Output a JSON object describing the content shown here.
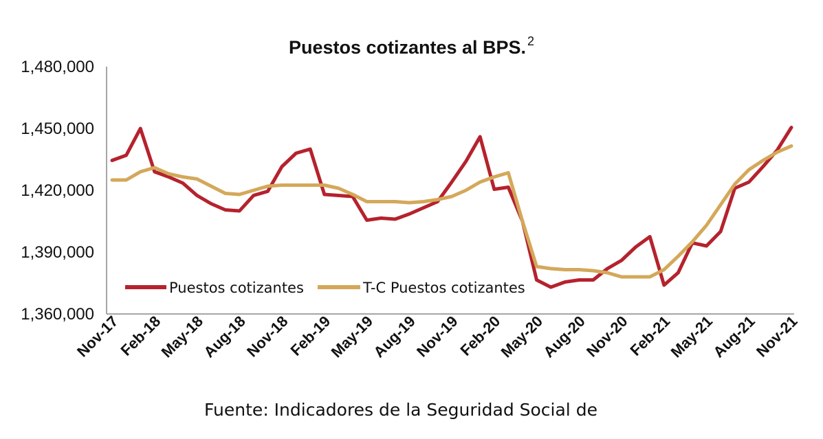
{
  "chart_data": {
    "type": "line",
    "title": "Puestos cotizantes al BPS.",
    "title_superscript": "2",
    "source": "Fuente: Indicadores de la Seguridad Social de",
    "ylim": [
      1360000,
      1480000
    ],
    "yticks": [
      "1,360,000",
      "1,390,000",
      "1,420,000",
      "1,450,000",
      "1,480,000"
    ],
    "ytick_values": [
      1360000,
      1390000,
      1420000,
      1450000,
      1480000
    ],
    "x": [
      "Nov-17",
      "Dec-17",
      "Jan-18",
      "Feb-18",
      "Mar-18",
      "Apr-18",
      "May-18",
      "Jun-18",
      "Jul-18",
      "Aug-18",
      "Sep-18",
      "Oct-18",
      "Nov-18",
      "Dec-18",
      "Jan-19",
      "Feb-19",
      "Mar-19",
      "Apr-19",
      "May-19",
      "Jun-19",
      "Jul-19",
      "Aug-19",
      "Sep-19",
      "Oct-19",
      "Nov-19",
      "Dec-19",
      "Jan-20",
      "Feb-20",
      "Mar-20",
      "Apr-20",
      "May-20",
      "Jun-20",
      "Jul-20",
      "Aug-20",
      "Sep-20",
      "Oct-20",
      "Nov-20",
      "Dec-20",
      "Jan-21",
      "Feb-21",
      "Mar-21",
      "Apr-21",
      "May-21",
      "Jun-21",
      "Jul-21",
      "Aug-21",
      "Sep-21",
      "Oct-21",
      "Nov-21"
    ],
    "xtick_labels": [
      "Nov-17",
      "Feb-18",
      "May-18",
      "Aug-18",
      "Nov-18",
      "Feb-19",
      "May-19",
      "Aug-19",
      "Nov-19",
      "Feb-20",
      "May-20",
      "Aug-20",
      "Nov-20",
      "Feb-21",
      "May-21",
      "Aug-21",
      "Nov-21"
    ],
    "legend_position": "bottom-left inside plot",
    "grid": false,
    "series": [
      {
        "name": "Puestos cotizantes",
        "color": "#b5222d",
        "values": [
          1434500,
          1437000,
          1450000,
          1429000,
          1426500,
          1423500,
          1417500,
          1413500,
          1410500,
          1410000,
          1417500,
          1419500,
          1431500,
          1438000,
          1440000,
          1418000,
          1417500,
          1417000,
          1405500,
          1406500,
          1406000,
          1408500,
          1411500,
          1414500,
          1424000,
          1434000,
          1446000,
          1420500,
          1421500,
          1405000,
          1376500,
          1373000,
          1375500,
          1376500,
          1376500,
          1382000,
          1386000,
          1392500,
          1397500,
          1374000,
          1380000,
          1394500,
          1393000,
          1400000,
          1421000,
          1424000,
          1431500,
          1439500,
          1450500
        ]
      },
      {
        "name": "T-C Puestos cotizantes",
        "color": "#d4a85a",
        "values": [
          1425000,
          1425000,
          1429000,
          1431000,
          1428000,
          1426500,
          1425500,
          1422000,
          1418500,
          1418000,
          1420000,
          1422000,
          1422500,
          1422500,
          1422500,
          1422500,
          1421000,
          1418000,
          1414500,
          1414500,
          1414500,
          1414000,
          1414500,
          1415500,
          1417000,
          1420000,
          1424000,
          1426500,
          1428500,
          1405000,
          1383000,
          1382000,
          1381500,
          1381500,
          1381000,
          1380000,
          1378000,
          1378000,
          1378000,
          1381500,
          1388000,
          1395000,
          1403000,
          1413000,
          1423000,
          1430000,
          1434500,
          1438500,
          1441500
        ]
      }
    ]
  }
}
